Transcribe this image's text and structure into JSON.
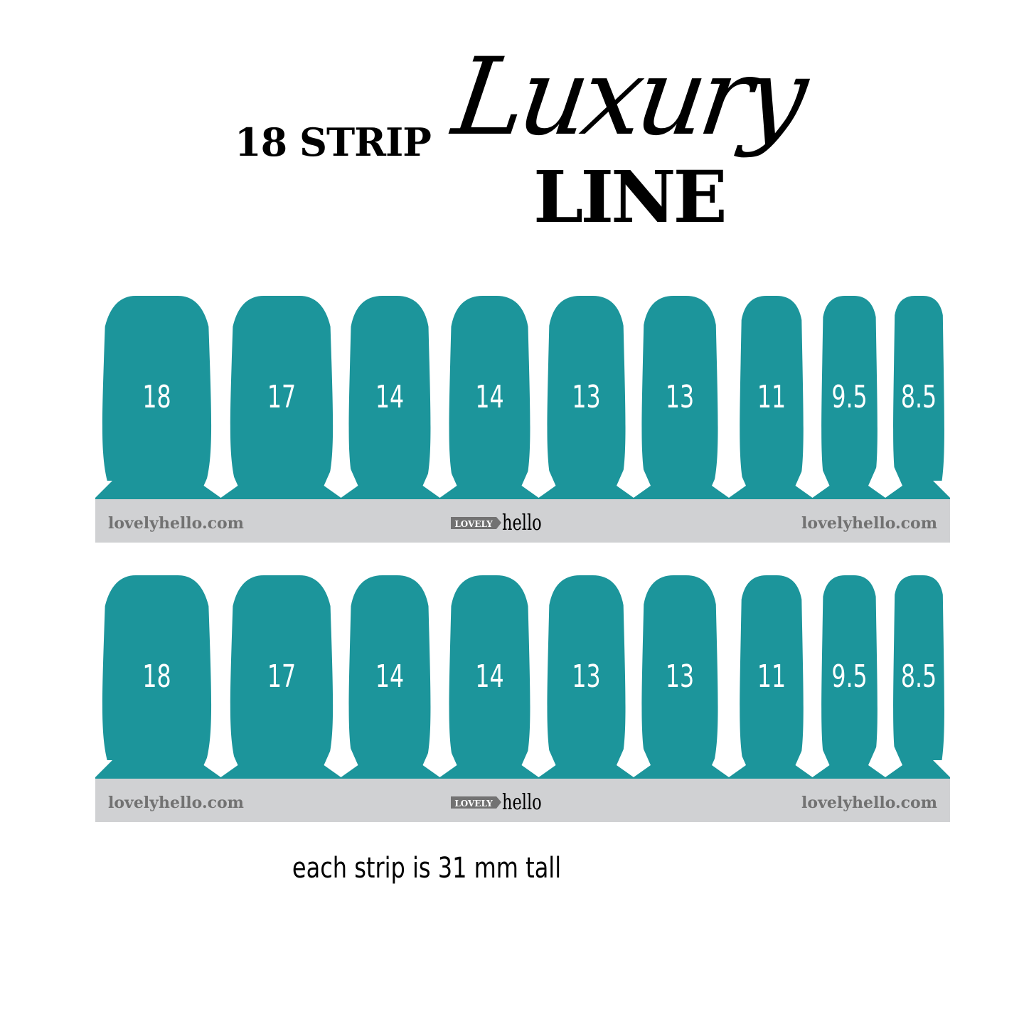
{
  "title": {
    "prefix": "18 STRIP",
    "script": "Luxury",
    "suffix": "LINE"
  },
  "colors": {
    "nail": "#1c959b",
    "band": "#d0d1d3",
    "band_text": "#727272"
  },
  "strips": [
    {
      "sizes": [
        "18",
        "17",
        "14",
        "14",
        "13",
        "13",
        "11",
        "9.5",
        "8.5"
      ],
      "band": {
        "left": "lovelyhello.com",
        "logo_box": "LOVELY",
        "logo_script": "hello",
        "right": "lovelyhello.com"
      }
    },
    {
      "sizes": [
        "18",
        "17",
        "14",
        "14",
        "13",
        "13",
        "11",
        "9.5",
        "8.5"
      ],
      "band": {
        "left": "lovelyhello.com",
        "logo_box": "LOVELY",
        "logo_script": "hello",
        "right": "lovelyhello.com"
      }
    }
  ],
  "caption": "each strip is 31 mm tall"
}
